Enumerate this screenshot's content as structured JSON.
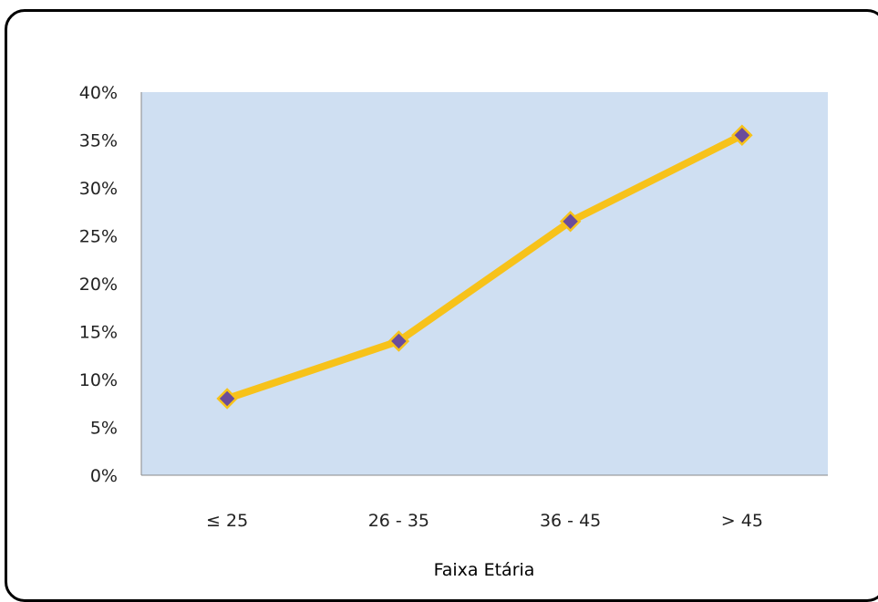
{
  "chart_data": {
    "type": "line",
    "categories": [
      "≤ 25",
      "26 - 35",
      "36 - 45",
      "> 45"
    ],
    "values": [
      0.08,
      0.14,
      0.265,
      0.355
    ],
    "xlabel": "Faixa Etária",
    "ylabel": "",
    "ylim": [
      0,
      0.4
    ],
    "yticks": [
      "0%",
      "5%",
      "10%",
      "15%",
      "20%",
      "25%",
      "30%",
      "35%",
      "40%"
    ],
    "grid": false,
    "legend": "none",
    "colors": {
      "plot_background": "#cfdff2",
      "line": "#f7c21a",
      "marker_fill": "#6b4c9a",
      "marker_edge": "#f7c21a"
    }
  }
}
